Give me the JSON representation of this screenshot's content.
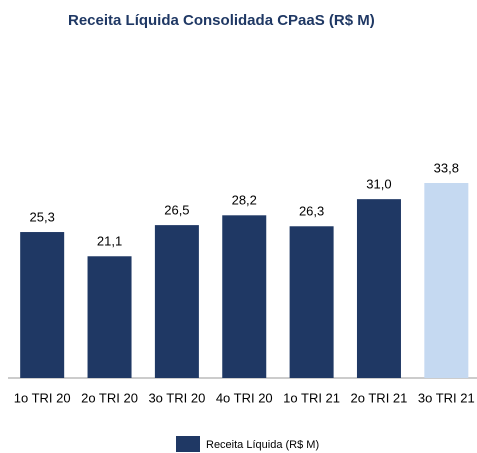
{
  "chart_data": {
    "type": "bar",
    "title": "Receita Líquida Consolidada CPaaS (R$ M)",
    "categories": [
      "1o TRI 20",
      "2o TRI 20",
      "3o TRI 20",
      "4o TRI 20",
      "1o TRI 21",
      "2o TRI 21",
      "3o TRI 21"
    ],
    "series": [
      {
        "name": "Receita Líquida (R$ M)",
        "color": "#1f3864",
        "values": [
          25.3,
          21.1,
          26.5,
          28.2,
          26.3,
          31.0,
          33.8
        ],
        "value_labels": [
          "25,3",
          "21,1",
          "26,5",
          "28,2",
          "26,3",
          "31,0",
          "33,8"
        ],
        "point_colors": [
          "#1f3864",
          "#1f3864",
          "#1f3864",
          "#1f3864",
          "#1f3864",
          "#1f3864",
          "#c5d9f1"
        ]
      }
    ],
    "legend": "bottom"
  }
}
